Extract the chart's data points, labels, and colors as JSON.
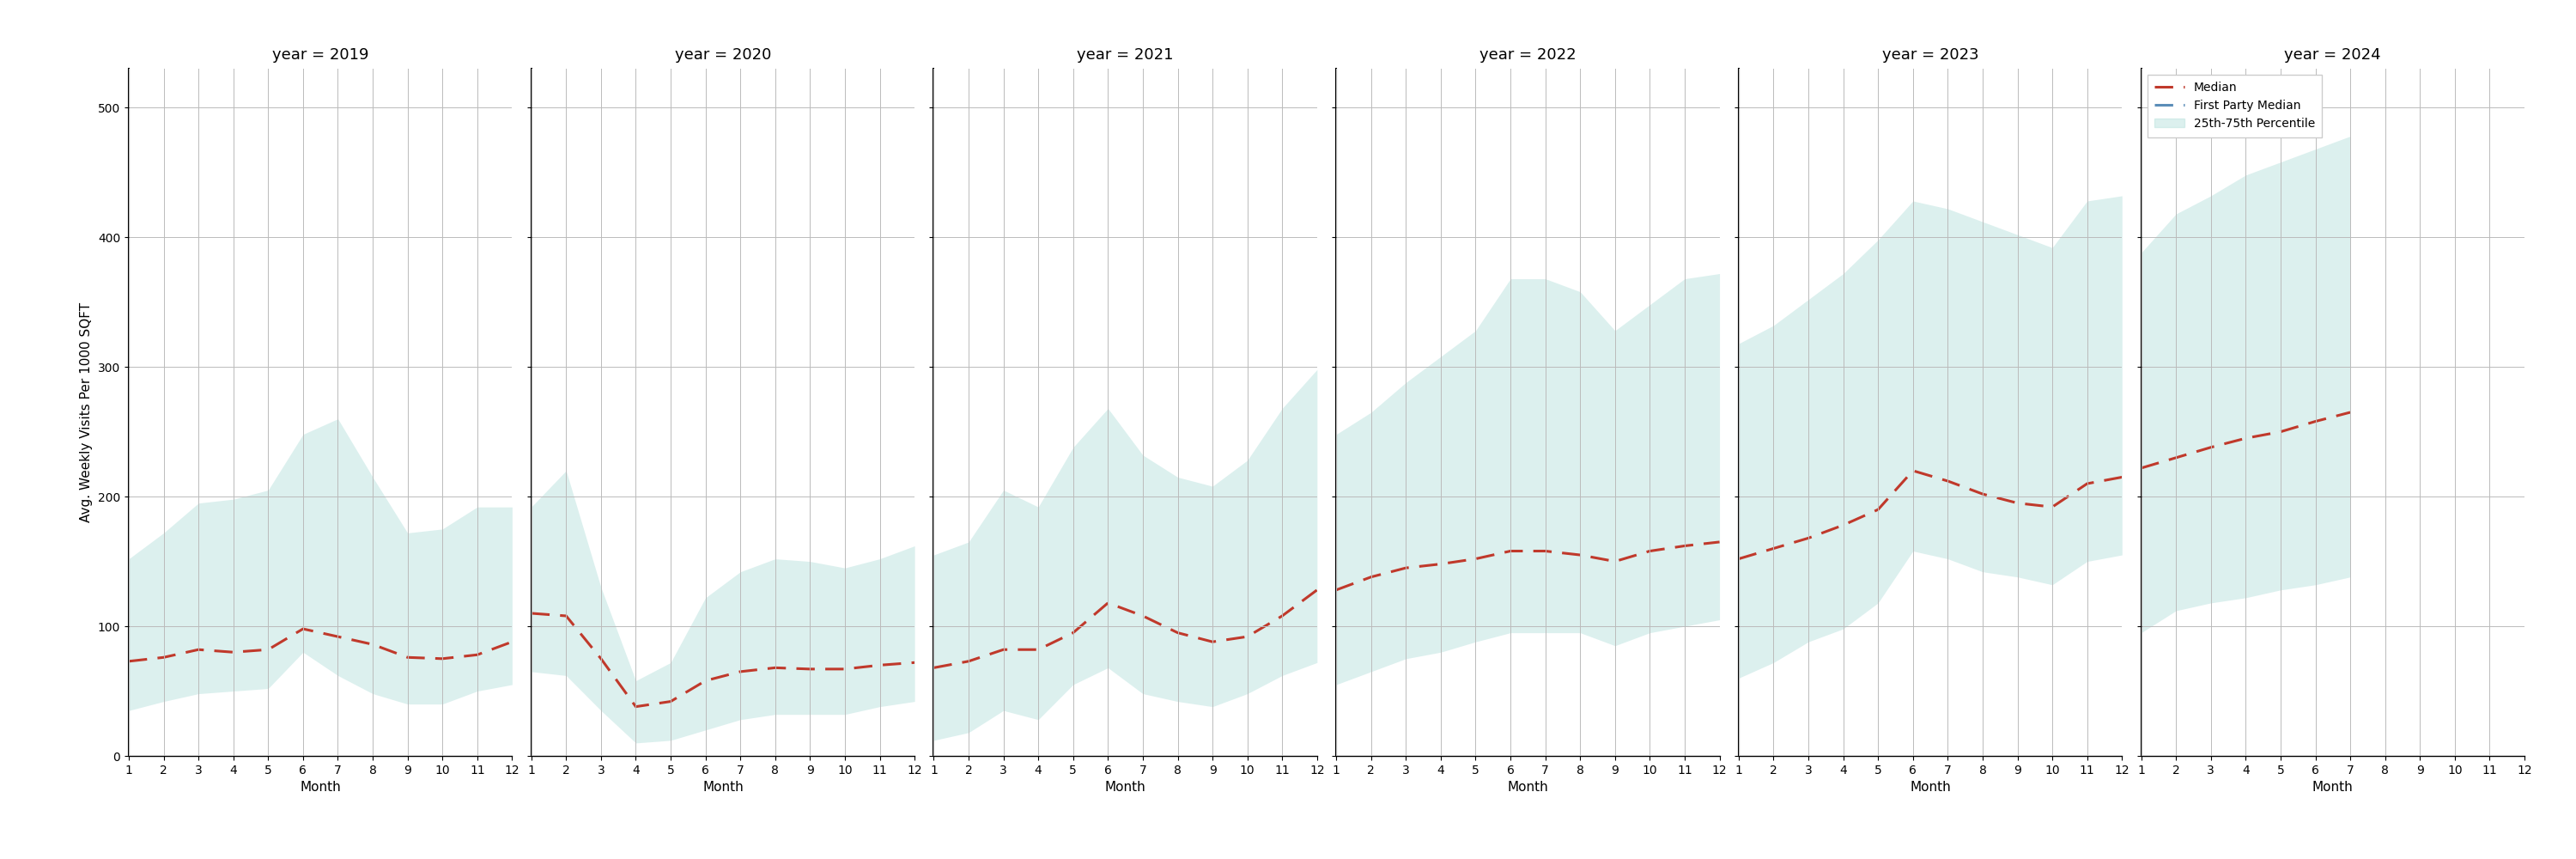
{
  "years": [
    2019,
    2020,
    2021,
    2022,
    2023,
    2024
  ],
  "months": [
    1,
    2,
    3,
    4,
    5,
    6,
    7,
    8,
    9,
    10,
    11,
    12
  ],
  "months_2024": [
    1,
    2,
    3,
    4,
    5,
    6,
    7
  ],
  "median": {
    "2019": [
      73,
      76,
      82,
      80,
      82,
      98,
      92,
      86,
      76,
      75,
      78,
      88
    ],
    "2020": [
      110,
      108,
      75,
      38,
      42,
      58,
      65,
      68,
      67,
      67,
      70,
      72
    ],
    "2021": [
      68,
      73,
      82,
      82,
      95,
      118,
      108,
      95,
      88,
      92,
      108,
      128
    ],
    "2022": [
      128,
      138,
      145,
      148,
      152,
      158,
      158,
      155,
      150,
      158,
      162,
      165
    ],
    "2023": [
      152,
      160,
      168,
      178,
      190,
      220,
      212,
      202,
      195,
      192,
      210,
      215
    ],
    "2024": [
      222,
      230,
      238,
      245,
      250,
      258,
      265
    ]
  },
  "p25": {
    "2019": [
      35,
      42,
      48,
      50,
      52,
      80,
      62,
      48,
      40,
      40,
      50,
      55
    ],
    "2020": [
      65,
      62,
      35,
      10,
      12,
      20,
      28,
      32,
      32,
      32,
      38,
      42
    ],
    "2021": [
      12,
      18,
      35,
      28,
      55,
      68,
      48,
      42,
      38,
      48,
      62,
      72
    ],
    "2022": [
      55,
      65,
      75,
      80,
      88,
      95,
      95,
      95,
      85,
      95,
      100,
      105
    ],
    "2023": [
      60,
      72,
      88,
      98,
      118,
      158,
      152,
      142,
      138,
      132,
      150,
      155
    ],
    "2024": [
      95,
      112,
      118,
      122,
      128,
      132,
      138
    ]
  },
  "p75": {
    "2019": [
      152,
      172,
      195,
      198,
      205,
      248,
      260,
      215,
      172,
      175,
      192,
      192
    ],
    "2020": [
      192,
      220,
      130,
      58,
      72,
      122,
      142,
      152,
      150,
      145,
      152,
      162
    ],
    "2021": [
      155,
      165,
      205,
      192,
      238,
      268,
      232,
      215,
      208,
      228,
      268,
      298
    ],
    "2022": [
      248,
      265,
      288,
      308,
      328,
      368,
      368,
      358,
      328,
      348,
      368,
      372
    ],
    "2023": [
      318,
      332,
      352,
      372,
      398,
      428,
      422,
      412,
      402,
      392,
      428,
      432
    ],
    "2024": [
      388,
      418,
      432,
      448,
      458,
      468,
      478
    ]
  },
  "fill_color": "#b2dfdb",
  "fill_alpha": 0.45,
  "median_color": "#c0392b",
  "fp_median_color": "#5b8db8",
  "ylabel": "Avg. Weekly Visits Per 1000 SQFT",
  "xlabel": "Month",
  "ylim": [
    0,
    530
  ],
  "yticks": [
    0,
    100,
    200,
    300,
    400,
    500
  ],
  "background_color": "#ffffff",
  "grid_color": "#bbbbbb",
  "title_fontsize": 13,
  "label_fontsize": 11,
  "tick_fontsize": 10
}
